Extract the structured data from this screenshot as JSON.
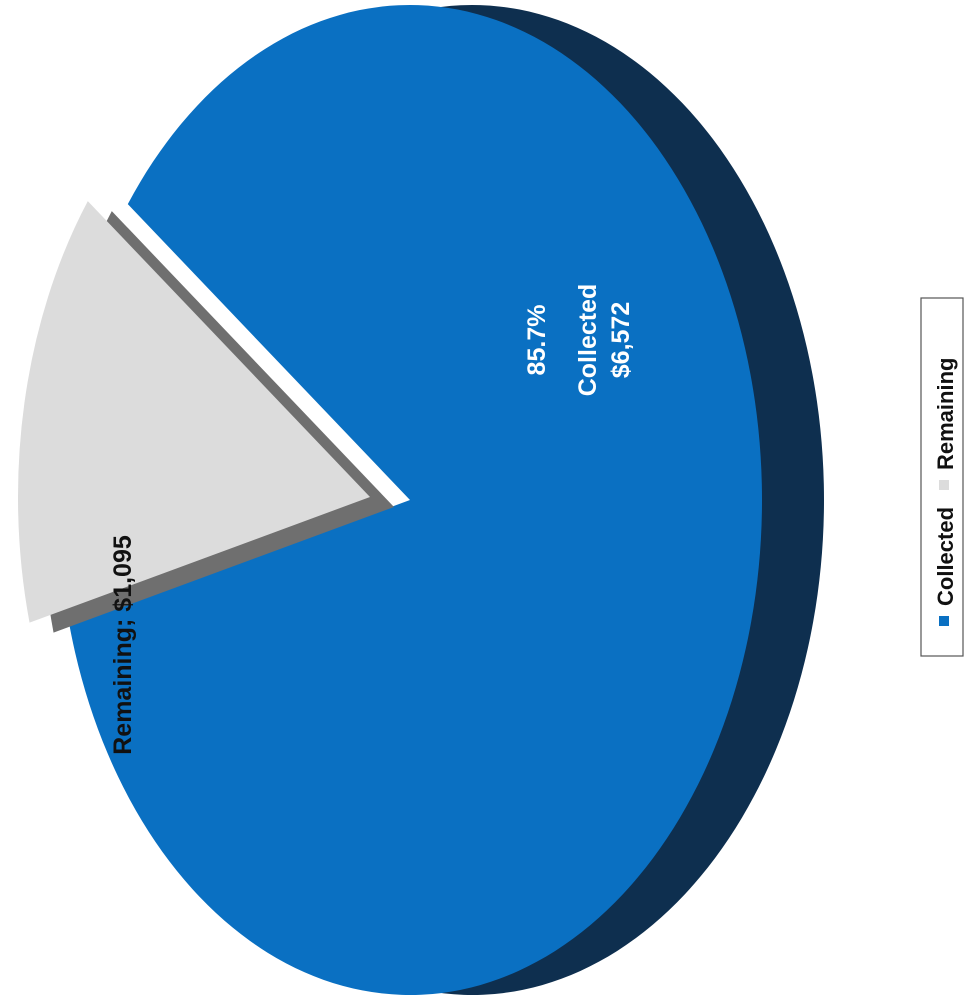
{
  "chart_data": {
    "type": "pie",
    "series": [
      {
        "name": "Collected",
        "value": 6572,
        "value_label": "$6,572",
        "percent_label": "85.7%",
        "color": "#0a70c2",
        "side_color": "#0e2f4f"
      },
      {
        "name": "Remaining",
        "value": 1095,
        "value_label": "Remaining; $1,095",
        "color": "#dcdcdc",
        "side_color": "#6f6f6f"
      }
    ],
    "style": "3d-pie-exploded",
    "legend": {
      "position": "right",
      "orientation": "rotated"
    }
  }
}
